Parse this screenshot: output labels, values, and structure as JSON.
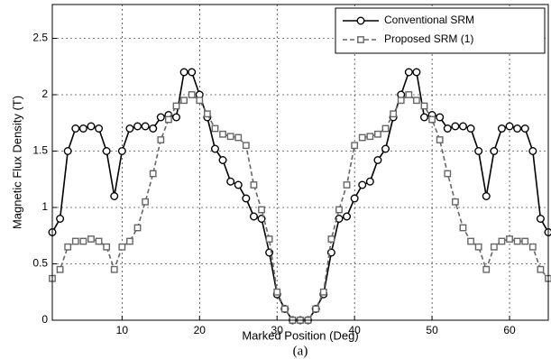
{
  "chart_data": {
    "type": "line",
    "xlabel": "Marked Position (Deg)",
    "ylabel": "Magnetic Flux Density (T)",
    "caption": "(a)",
    "x": [
      1,
      2,
      3,
      4,
      5,
      6,
      7,
      8,
      9,
      10,
      11,
      12,
      13,
      14,
      15,
      16,
      17,
      18,
      19,
      20,
      21,
      22,
      23,
      24,
      25,
      26,
      27,
      28,
      29,
      30,
      31,
      32,
      33,
      34,
      35,
      36,
      37,
      38,
      39,
      40,
      41,
      42,
      43,
      44,
      45,
      46,
      47,
      48,
      49,
      50,
      51,
      52,
      53,
      54,
      55,
      56,
      57,
      58,
      59,
      60,
      61,
      62,
      63,
      64,
      65
    ],
    "series": [
      {
        "name": "Conventional SRM",
        "color": "#000000",
        "linestyle": "solid",
        "marker": "circle",
        "values": [
          0.78,
          0.9,
          1.5,
          1.7,
          1.7,
          1.72,
          1.7,
          1.5,
          1.1,
          1.5,
          1.7,
          1.72,
          1.72,
          1.7,
          1.8,
          1.82,
          1.8,
          2.2,
          2.2,
          2.0,
          1.8,
          1.52,
          1.42,
          1.23,
          1.2,
          1.08,
          0.92,
          0.9,
          0.6,
          0.23,
          0.1,
          0,
          0,
          0,
          0.1,
          0.23,
          0.6,
          0.9,
          0.92,
          1.08,
          1.2,
          1.23,
          1.42,
          1.52,
          1.8,
          2.0,
          2.2,
          2.2,
          1.8,
          1.82,
          1.8,
          1.7,
          1.72,
          1.72,
          1.7,
          1.5,
          1.1,
          1.5,
          1.7,
          1.72,
          1.7,
          1.7,
          1.5,
          0.9,
          0.78
        ]
      },
      {
        "name": "Proposed SRM (1)",
        "color": "#666666",
        "linestyle": "dashed",
        "marker": "square",
        "values": [
          0.37,
          0.45,
          0.65,
          0.7,
          0.7,
          0.72,
          0.7,
          0.65,
          0.45,
          0.65,
          0.7,
          0.82,
          1.05,
          1.3,
          1.6,
          1.78,
          1.9,
          1.95,
          2.0,
          1.95,
          1.83,
          1.7,
          1.65,
          1.63,
          1.62,
          1.55,
          1.2,
          0.98,
          0.72,
          0.25,
          0.1,
          0,
          0,
          0,
          0.1,
          0.25,
          0.72,
          0.98,
          1.2,
          1.55,
          1.62,
          1.63,
          1.65,
          1.7,
          1.83,
          1.95,
          2.0,
          1.95,
          1.9,
          1.78,
          1.6,
          1.3,
          1.05,
          0.82,
          0.7,
          0.65,
          0.45,
          0.65,
          0.7,
          0.72,
          0.7,
          0.7,
          0.65,
          0.45,
          0.37
        ]
      }
    ],
    "xlim": [
      1,
      65
    ],
    "xticks": [
      10,
      20,
      30,
      40,
      50,
      60
    ],
    "ylim": [
      0,
      2.8
    ],
    "yticks": [
      0,
      0.5,
      1,
      1.5,
      2,
      2.5
    ],
    "grid": true,
    "legend": "upper right"
  }
}
